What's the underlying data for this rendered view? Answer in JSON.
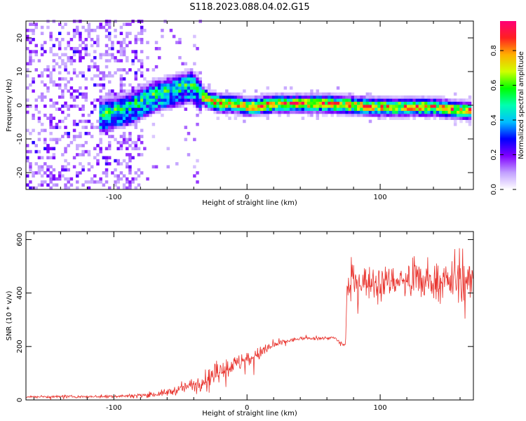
{
  "figure": {
    "title": "S118.2023.088.04.02.G15"
  },
  "chart_data": [
    {
      "type": "heatmap",
      "title": "",
      "xlabel": "Height of straight line (km)",
      "ylabel": "Frequency (Hz)",
      "xlim": [
        -166,
        170
      ],
      "ylim": [
        -25,
        25
      ],
      "xticks": [
        -100,
        0,
        100
      ],
      "yticks": [
        -20,
        -10,
        0,
        10,
        20
      ],
      "colorbar": {
        "label": "Normalized spectral amplitude",
        "range": [
          0,
          0.97
        ],
        "ticks": [
          "0.0",
          "0.2",
          "0.4",
          "0.6",
          "0.8"
        ],
        "colormap": [
          "#ffffff",
          "#c2a0ff",
          "#7f00ff",
          "#0000ff",
          "#00bfff",
          "#00ffb0",
          "#00ff00",
          "#d0ff00",
          "#ffb000",
          "#ff2020",
          "#ff0077"
        ]
      },
      "ridge": {
        "x": [
          -110,
          -100,
          -90,
          -80,
          -70,
          -60,
          -50,
          -42,
          -36,
          -30,
          -20,
          -10,
          0,
          20,
          40,
          60,
          80,
          100,
          120,
          140,
          160,
          170
        ],
        "y": [
          -3,
          -2,
          -1,
          1,
          3,
          4,
          5,
          6,
          3,
          1,
          0,
          0,
          -1,
          0,
          0,
          0,
          -0.5,
          -1,
          -1,
          -1,
          -2,
          -2
        ]
      }
    },
    {
      "type": "line",
      "title": "",
      "xlabel": "Height of straight line (km)",
      "ylabel": "SNR (10 * v/v)",
      "xlim": [
        -166,
        170
      ],
      "ylim": [
        0,
        630
      ],
      "xticks": [
        -100,
        0,
        100
      ],
      "yticks": [
        0,
        200,
        400,
        600
      ],
      "color": "#e8302a",
      "series": [
        {
          "x": [
            -166,
            -140,
            -110,
            -90,
            -70,
            -60,
            -50,
            -40,
            -30,
            -20,
            -10,
            0,
            10,
            20,
            30,
            40,
            50,
            60,
            66,
            70,
            74,
            75,
            78,
            80,
            100,
            120,
            140,
            160,
            170
          ],
          "y": [
            12,
            12,
            13,
            15,
            20,
            28,
            40,
            60,
            80,
            110,
            130,
            150,
            175,
            205,
            220,
            230,
            230,
            232,
            232,
            212,
            205,
            420,
            440,
            445,
            445,
            445,
            445,
            445,
            440
          ],
          "noise": [
            4,
            4,
            4,
            5,
            8,
            12,
            15,
            20,
            28,
            30,
            28,
            25,
            20,
            12,
            8,
            5,
            5,
            5,
            5,
            5,
            5,
            25,
            40,
            45,
            45,
            50,
            55,
            60,
            60
          ]
        }
      ]
    }
  ]
}
